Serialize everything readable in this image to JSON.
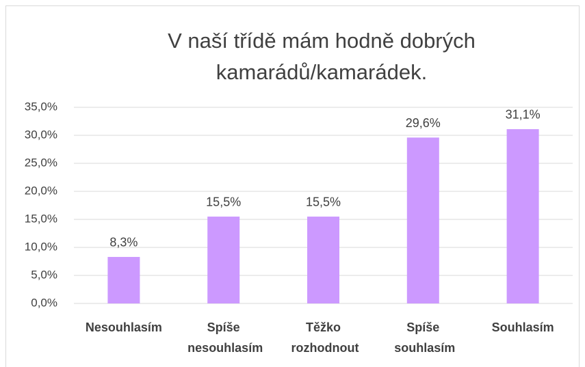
{
  "chart_data": {
    "type": "bar",
    "title": [
      "V naší třídě mám hodně dobrých",
      "kamarádů/kamarádek."
    ],
    "categories": [
      "Nesouhlasím",
      "Spíše nesouhlasím",
      "Těžko rozhodnout",
      "Spíše souhlasím",
      "Souhlasím"
    ],
    "values": [
      8.3,
      15.5,
      15.5,
      29.6,
      31.1
    ],
    "value_labels": [
      "8,3%",
      "15,5%",
      "15,5%",
      "29,6%",
      "31,1%"
    ],
    "color": "#cc99ff",
    "ylim": [
      0,
      35
    ],
    "yticks": [
      {
        "value": 0,
        "label": "0,0%"
      },
      {
        "value": 5,
        "label": "5,0%"
      },
      {
        "value": 10,
        "label": "10,0%"
      },
      {
        "value": 15,
        "label": "15,0%"
      },
      {
        "value": 20,
        "label": "20,0%"
      },
      {
        "value": 25,
        "label": "25,0%"
      },
      {
        "value": 30,
        "label": "30,0%"
      },
      {
        "value": 35,
        "label": "35,0%"
      }
    ],
    "grid": true
  }
}
